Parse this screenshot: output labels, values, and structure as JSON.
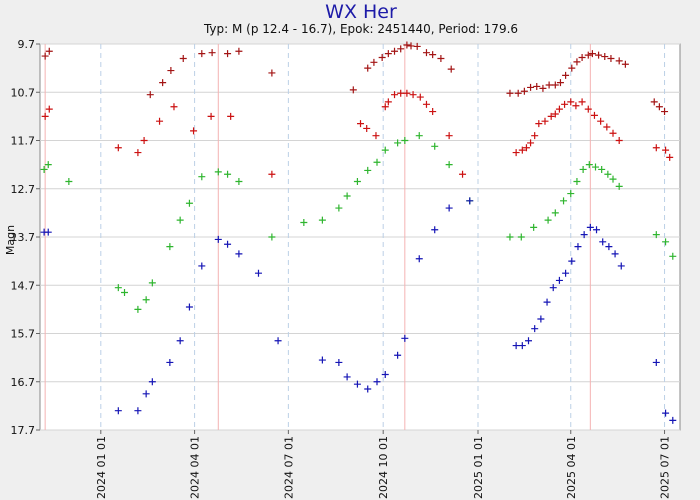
{
  "chart_data": {
    "type": "scatter",
    "title": "WX Her",
    "subtitle": "Typ: M (p 12.4 - 16.7), Epok: 2451440, Period: 179.6",
    "ylabel": "Magn",
    "ylim": [
      9.7,
      17.7
    ],
    "y_inverted": true,
    "yticks": [
      9.7,
      10.7,
      11.7,
      12.7,
      13.7,
      14.7,
      15.7,
      16.7,
      17.7
    ],
    "x_axis": {
      "type": "date",
      "range": [
        "2023-11-03",
        "2025-07-16"
      ]
    },
    "xticks": [
      "2024 01 01",
      "2024 04 01",
      "2024 07 01",
      "2024 10 01",
      "2025 01 01",
      "2025 04 01",
      "2025 07 01"
    ],
    "grid": true,
    "maxima_markers": [
      "2023-11-08",
      "2024-04-24",
      "2024-10-22",
      "2025-04-20"
    ],
    "colors": {
      "red": "#cc1111",
      "darkred": "#a31414",
      "green": "#2fb52f",
      "blue": "#1515b5",
      "max_line": "#f4b3b3"
    },
    "series": [
      {
        "color": "darkred",
        "points": [
          [
            "2023-11-08",
            9.95
          ],
          [
            "2023-11-12",
            9.85
          ],
          [
            "2024-02-18",
            10.75
          ],
          [
            "2024-03-01",
            10.5
          ],
          [
            "2024-03-09",
            10.25
          ],
          [
            "2024-03-21",
            10.0
          ],
          [
            "2024-04-08",
            9.9
          ],
          [
            "2024-04-18",
            9.88
          ],
          [
            "2024-05-03",
            9.9
          ],
          [
            "2024-05-14",
            9.85
          ],
          [
            "2024-06-15",
            10.3
          ],
          [
            "2024-09-02",
            10.65
          ],
          [
            "2024-09-16",
            10.2
          ],
          [
            "2024-09-22",
            10.08
          ],
          [
            "2024-09-30",
            9.98
          ],
          [
            "2024-10-06",
            9.9
          ],
          [
            "2024-10-12",
            9.85
          ],
          [
            "2024-10-18",
            9.8
          ],
          [
            "2024-10-24",
            9.72
          ],
          [
            "2024-10-28",
            9.74
          ],
          [
            "2024-11-03",
            9.75
          ],
          [
            "2024-11-12",
            9.88
          ],
          [
            "2024-11-18",
            9.92
          ],
          [
            "2024-11-26",
            10.0
          ],
          [
            "2024-12-06",
            10.22
          ],
          [
            "2025-02-01",
            10.72
          ],
          [
            "2025-02-09",
            10.72
          ],
          [
            "2025-02-15",
            10.68
          ],
          [
            "2025-02-21",
            10.6
          ],
          [
            "2025-02-27",
            10.58
          ],
          [
            "2025-03-05",
            10.62
          ],
          [
            "2025-03-11",
            10.55
          ],
          [
            "2025-03-17",
            10.55
          ],
          [
            "2025-03-22",
            10.5
          ],
          [
            "2025-03-27",
            10.35
          ],
          [
            "2025-04-02",
            10.2
          ],
          [
            "2025-04-07",
            10.07
          ],
          [
            "2025-04-12",
            9.98
          ],
          [
            "2025-04-18",
            9.93
          ],
          [
            "2025-04-22",
            9.9
          ],
          [
            "2025-04-28",
            9.93
          ],
          [
            "2025-05-04",
            9.96
          ],
          [
            "2025-05-10",
            10.0
          ],
          [
            "2025-05-18",
            10.05
          ],
          [
            "2025-05-24",
            10.12
          ],
          [
            "2025-06-21",
            10.9
          ],
          [
            "2025-06-26",
            11.0
          ],
          [
            "2025-07-01",
            11.1
          ]
        ]
      },
      {
        "color": "red",
        "points": [
          [
            "2023-11-08",
            11.2
          ],
          [
            "2023-11-12",
            11.05
          ],
          [
            "2024-01-18",
            11.85
          ],
          [
            "2024-02-06",
            11.95
          ],
          [
            "2024-02-12",
            11.7
          ],
          [
            "2024-02-27",
            11.3
          ],
          [
            "2024-03-12",
            11.0
          ],
          [
            "2024-03-31",
            11.5
          ],
          [
            "2024-04-17",
            11.2
          ],
          [
            "2024-05-06",
            11.2
          ],
          [
            "2024-06-15",
            12.4
          ],
          [
            "2024-09-09",
            11.35
          ],
          [
            "2024-09-15",
            11.45
          ],
          [
            "2024-09-24",
            11.6
          ],
          [
            "2024-10-03",
            11.0
          ],
          [
            "2024-10-06",
            10.9
          ],
          [
            "2024-10-12",
            10.75
          ],
          [
            "2024-10-18",
            10.72
          ],
          [
            "2024-10-24",
            10.72
          ],
          [
            "2024-10-30",
            10.75
          ],
          [
            "2024-11-06",
            10.8
          ],
          [
            "2024-11-12",
            10.95
          ],
          [
            "2024-11-18",
            11.1
          ],
          [
            "2024-12-04",
            11.6
          ],
          [
            "2024-12-17",
            12.4
          ],
          [
            "2025-02-07",
            11.95
          ],
          [
            "2025-02-13",
            11.9
          ],
          [
            "2025-02-17",
            11.85
          ],
          [
            "2025-02-21",
            11.75
          ],
          [
            "2025-02-25",
            11.6
          ],
          [
            "2025-03-01",
            11.35
          ],
          [
            "2025-03-07",
            11.3
          ],
          [
            "2025-03-13",
            11.2
          ],
          [
            "2025-03-17",
            11.15
          ],
          [
            "2025-03-21",
            11.05
          ],
          [
            "2025-03-26",
            10.95
          ],
          [
            "2025-04-01",
            10.9
          ],
          [
            "2025-04-06",
            10.98
          ],
          [
            "2025-04-12",
            10.9
          ],
          [
            "2025-04-18",
            11.05
          ],
          [
            "2025-04-24",
            11.18
          ],
          [
            "2025-04-30",
            11.3
          ],
          [
            "2025-05-06",
            11.42
          ],
          [
            "2025-05-12",
            11.55
          ],
          [
            "2025-05-18",
            11.7
          ],
          [
            "2025-06-23",
            11.85
          ],
          [
            "2025-07-02",
            11.9
          ],
          [
            "2025-07-06",
            12.05
          ]
        ]
      },
      {
        "color": "green",
        "points": [
          [
            "2023-11-07",
            12.3
          ],
          [
            "2023-11-11",
            12.2
          ],
          [
            "2023-12-01",
            12.55
          ],
          [
            "2024-01-18",
            14.75
          ],
          [
            "2024-01-24",
            14.85
          ],
          [
            "2024-02-06",
            15.2
          ],
          [
            "2024-02-14",
            15.0
          ],
          [
            "2024-02-20",
            14.65
          ],
          [
            "2024-03-08",
            13.9
          ],
          [
            "2024-03-18",
            13.35
          ],
          [
            "2024-03-27",
            13.0
          ],
          [
            "2024-04-08",
            12.45
          ],
          [
            "2024-04-24",
            12.35
          ],
          [
            "2024-05-03",
            12.4
          ],
          [
            "2024-05-14",
            12.55
          ],
          [
            "2024-06-15",
            13.7
          ],
          [
            "2024-07-16",
            13.4
          ],
          [
            "2024-08-03",
            13.35
          ],
          [
            "2024-08-19",
            13.1
          ],
          [
            "2024-08-27",
            12.85
          ],
          [
            "2024-09-06",
            12.55
          ],
          [
            "2024-09-16",
            12.32
          ],
          [
            "2024-09-25",
            12.15
          ],
          [
            "2024-10-03",
            11.9
          ],
          [
            "2024-10-15",
            11.75
          ],
          [
            "2024-10-22",
            11.7
          ],
          [
            "2024-11-05",
            11.6
          ],
          [
            "2024-11-20",
            11.82
          ],
          [
            "2024-12-04",
            12.2
          ],
          [
            "2024-12-24",
            12.95
          ],
          [
            "2025-02-01",
            13.7
          ],
          [
            "2025-02-12",
            13.7
          ],
          [
            "2025-02-24",
            13.5
          ],
          [
            "2025-03-10",
            13.35
          ],
          [
            "2025-03-17",
            13.2
          ],
          [
            "2025-03-25",
            12.95
          ],
          [
            "2025-04-01",
            12.8
          ],
          [
            "2025-04-07",
            12.55
          ],
          [
            "2025-04-13",
            12.3
          ],
          [
            "2025-04-19",
            12.2
          ],
          [
            "2025-04-25",
            12.25
          ],
          [
            "2025-05-01",
            12.3
          ],
          [
            "2025-05-07",
            12.4
          ],
          [
            "2025-05-12",
            12.5
          ],
          [
            "2025-05-18",
            12.65
          ],
          [
            "2025-06-23",
            13.65
          ],
          [
            "2025-07-02",
            13.8
          ],
          [
            "2025-07-09",
            14.1
          ]
        ]
      },
      {
        "color": "blue",
        "points": [
          [
            "2023-11-07",
            13.6
          ],
          [
            "2023-11-11",
            13.6
          ],
          [
            "2024-01-18",
            17.3
          ],
          [
            "2024-02-06",
            17.3
          ],
          [
            "2024-02-14",
            16.95
          ],
          [
            "2024-02-20",
            16.7
          ],
          [
            "2024-03-08",
            16.3
          ],
          [
            "2024-03-18",
            15.85
          ],
          [
            "2024-03-27",
            15.15
          ],
          [
            "2024-04-08",
            14.3
          ],
          [
            "2024-04-24",
            13.75
          ],
          [
            "2024-05-03",
            13.85
          ],
          [
            "2024-05-14",
            14.05
          ],
          [
            "2024-06-02",
            14.45
          ],
          [
            "2024-06-21",
            15.85
          ],
          [
            "2024-08-03",
            16.25
          ],
          [
            "2024-08-19",
            16.3
          ],
          [
            "2024-08-27",
            16.6
          ],
          [
            "2024-09-06",
            16.75
          ],
          [
            "2024-09-16",
            16.85
          ],
          [
            "2024-09-25",
            16.7
          ],
          [
            "2024-10-03",
            16.55
          ],
          [
            "2024-10-15",
            16.15
          ],
          [
            "2024-10-22",
            15.8
          ],
          [
            "2024-11-05",
            14.15
          ],
          [
            "2024-11-20",
            13.55
          ],
          [
            "2024-12-04",
            13.1
          ],
          [
            "2024-12-24",
            12.95
          ],
          [
            "2025-02-07",
            15.95
          ],
          [
            "2025-02-13",
            15.95
          ],
          [
            "2025-02-19",
            15.85
          ],
          [
            "2025-02-25",
            15.6
          ],
          [
            "2025-03-03",
            15.4
          ],
          [
            "2025-03-09",
            15.05
          ],
          [
            "2025-03-15",
            14.75
          ],
          [
            "2025-03-21",
            14.6
          ],
          [
            "2025-03-27",
            14.45
          ],
          [
            "2025-04-02",
            14.2
          ],
          [
            "2025-04-08",
            13.9
          ],
          [
            "2025-04-14",
            13.65
          ],
          [
            "2025-04-20",
            13.5
          ],
          [
            "2025-04-26",
            13.55
          ],
          [
            "2025-05-02",
            13.8
          ],
          [
            "2025-05-08",
            13.9
          ],
          [
            "2025-05-14",
            14.05
          ],
          [
            "2025-05-20",
            14.3
          ],
          [
            "2025-06-23",
            16.3
          ],
          [
            "2025-07-02",
            17.35
          ],
          [
            "2025-07-09",
            17.5
          ]
        ]
      }
    ]
  }
}
